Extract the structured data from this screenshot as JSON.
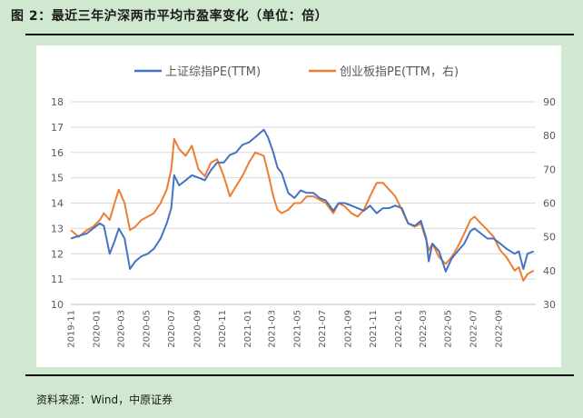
{
  "figure": {
    "title": "图 2：最近三年沪深两市平均市盈率变化（单位：倍）",
    "source": "资料来源：Wind，中原证券"
  },
  "colors": {
    "background": "#cfe8cf",
    "panel": "#ffffff",
    "series_blue": "#4472c4",
    "series_orange": "#ed7d31",
    "grid": "#d9d9d9",
    "axis_text": "#595959"
  },
  "chart_data": {
    "type": "line",
    "legend_position": "top",
    "grid": true,
    "x_ticks": [
      "2019-11",
      "2020-01",
      "2020-03",
      "2020-05",
      "2020-07",
      "2020-09",
      "2020-11",
      "2021-01",
      "2021-03",
      "2021-05",
      "2021-07",
      "2021-09",
      "2021-11",
      "2022-01",
      "2022-03",
      "2022-05",
      "2022-07",
      "2022-09"
    ],
    "x_range": [
      "2019-11-01",
      "2022-11-30"
    ],
    "y_left": {
      "ticks": [
        10,
        11,
        12,
        13,
        14,
        15,
        16,
        17,
        18
      ],
      "ylim": [
        10,
        18
      ]
    },
    "y_right": {
      "ticks": [
        30,
        40,
        50,
        60,
        70,
        80,
        90
      ],
      "ylim": [
        30,
        90
      ]
    },
    "series": [
      {
        "name": "上证综指PE(TTM)",
        "axis": "left",
        "points": [
          [
            "2019-11-01",
            12.6
          ],
          [
            "2019-11-20",
            12.7
          ],
          [
            "2019-12-10",
            12.8
          ],
          [
            "2019-12-25",
            13.0
          ],
          [
            "2020-01-10",
            13.2
          ],
          [
            "2020-01-20",
            13.1
          ],
          [
            "2020-02-03",
            12.0
          ],
          [
            "2020-02-15",
            12.5
          ],
          [
            "2020-02-25",
            13.0
          ],
          [
            "2020-03-10",
            12.6
          ],
          [
            "2020-03-23",
            11.4
          ],
          [
            "2020-04-05",
            11.7
          ],
          [
            "2020-04-20",
            11.9
          ],
          [
            "2020-05-05",
            12.0
          ],
          [
            "2020-05-20",
            12.2
          ],
          [
            "2020-06-05",
            12.6
          ],
          [
            "2020-06-20",
            13.2
          ],
          [
            "2020-07-01",
            13.8
          ],
          [
            "2020-07-08",
            15.1
          ],
          [
            "2020-07-20",
            14.7
          ],
          [
            "2020-08-05",
            14.9
          ],
          [
            "2020-08-20",
            15.1
          ],
          [
            "2020-09-05",
            15.0
          ],
          [
            "2020-09-20",
            14.9
          ],
          [
            "2020-10-05",
            15.3
          ],
          [
            "2020-10-20",
            15.6
          ],
          [
            "2020-11-05",
            15.6
          ],
          [
            "2020-11-20",
            15.9
          ],
          [
            "2020-12-05",
            16.0
          ],
          [
            "2020-12-20",
            16.3
          ],
          [
            "2021-01-05",
            16.4
          ],
          [
            "2021-01-20",
            16.6
          ],
          [
            "2021-02-10",
            16.9
          ],
          [
            "2021-02-20",
            16.6
          ],
          [
            "2021-03-05",
            16.0
          ],
          [
            "2021-03-15",
            15.4
          ],
          [
            "2021-03-25",
            15.2
          ],
          [
            "2021-04-10",
            14.4
          ],
          [
            "2021-04-25",
            14.2
          ],
          [
            "2021-05-10",
            14.5
          ],
          [
            "2021-05-25",
            14.4
          ],
          [
            "2021-06-10",
            14.4
          ],
          [
            "2021-06-25",
            14.2
          ],
          [
            "2021-07-10",
            14.1
          ],
          [
            "2021-07-28",
            13.7
          ],
          [
            "2021-08-10",
            14.0
          ],
          [
            "2021-08-25",
            14.0
          ],
          [
            "2021-09-10",
            13.9
          ],
          [
            "2021-09-25",
            13.8
          ],
          [
            "2021-10-10",
            13.7
          ],
          [
            "2021-10-25",
            13.9
          ],
          [
            "2021-11-10",
            13.6
          ],
          [
            "2021-11-25",
            13.8
          ],
          [
            "2021-12-10",
            13.8
          ],
          [
            "2021-12-25",
            13.9
          ],
          [
            "2022-01-10",
            13.8
          ],
          [
            "2022-01-25",
            13.2
          ],
          [
            "2022-02-10",
            13.1
          ],
          [
            "2022-02-25",
            13.3
          ],
          [
            "2022-03-10",
            12.6
          ],
          [
            "2022-03-16",
            11.7
          ],
          [
            "2022-03-25",
            12.4
          ],
          [
            "2022-04-10",
            12.1
          ],
          [
            "2022-04-26",
            11.3
          ],
          [
            "2022-05-10",
            11.8
          ],
          [
            "2022-05-25",
            12.1
          ],
          [
            "2022-06-10",
            12.4
          ],
          [
            "2022-06-25",
            12.9
          ],
          [
            "2022-07-05",
            13.0
          ],
          [
            "2022-07-20",
            12.8
          ],
          [
            "2022-08-05",
            12.6
          ],
          [
            "2022-08-20",
            12.6
          ],
          [
            "2022-09-05",
            12.4
          ],
          [
            "2022-09-20",
            12.2
          ],
          [
            "2022-10-10",
            12.0
          ],
          [
            "2022-10-20",
            12.1
          ],
          [
            "2022-10-31",
            11.4
          ],
          [
            "2022-11-10",
            12.0
          ],
          [
            "2022-11-25",
            12.1
          ]
        ]
      },
      {
        "name": "创业板指PE(TTM，右)",
        "axis": "right",
        "points": [
          [
            "2019-11-01",
            52
          ],
          [
            "2019-11-20",
            50
          ],
          [
            "2019-12-10",
            52
          ],
          [
            "2019-12-25",
            53
          ],
          [
            "2020-01-10",
            55
          ],
          [
            "2020-01-20",
            57
          ],
          [
            "2020-02-03",
            55
          ],
          [
            "2020-02-15",
            60
          ],
          [
            "2020-02-25",
            64
          ],
          [
            "2020-03-10",
            60
          ],
          [
            "2020-03-23",
            52
          ],
          [
            "2020-04-05",
            53
          ],
          [
            "2020-04-20",
            55
          ],
          [
            "2020-05-05",
            56
          ],
          [
            "2020-05-20",
            57
          ],
          [
            "2020-06-05",
            60
          ],
          [
            "2020-06-20",
            64
          ],
          [
            "2020-07-01",
            70
          ],
          [
            "2020-07-08",
            79
          ],
          [
            "2020-07-20",
            76
          ],
          [
            "2020-08-05",
            74
          ],
          [
            "2020-08-20",
            77
          ],
          [
            "2020-09-05",
            70
          ],
          [
            "2020-09-20",
            68
          ],
          [
            "2020-10-05",
            72
          ],
          [
            "2020-10-20",
            73
          ],
          [
            "2020-11-05",
            68
          ],
          [
            "2020-11-20",
            62
          ],
          [
            "2020-12-05",
            65
          ],
          [
            "2020-12-20",
            68
          ],
          [
            "2021-01-05",
            72
          ],
          [
            "2021-01-20",
            75
          ],
          [
            "2021-02-10",
            74
          ],
          [
            "2021-02-20",
            69
          ],
          [
            "2021-03-05",
            62
          ],
          [
            "2021-03-15",
            58
          ],
          [
            "2021-03-25",
            57
          ],
          [
            "2021-04-10",
            58
          ],
          [
            "2021-04-25",
            60
          ],
          [
            "2021-05-10",
            60
          ],
          [
            "2021-05-25",
            62
          ],
          [
            "2021-06-10",
            62
          ],
          [
            "2021-06-25",
            61
          ],
          [
            "2021-07-10",
            60
          ],
          [
            "2021-07-28",
            57
          ],
          [
            "2021-08-10",
            60
          ],
          [
            "2021-08-25",
            59
          ],
          [
            "2021-09-10",
            57
          ],
          [
            "2021-09-25",
            56
          ],
          [
            "2021-10-10",
            58
          ],
          [
            "2021-10-25",
            62
          ],
          [
            "2021-11-10",
            66
          ],
          [
            "2021-11-25",
            66
          ],
          [
            "2021-12-10",
            64
          ],
          [
            "2021-12-25",
            62
          ],
          [
            "2022-01-10",
            58
          ],
          [
            "2022-01-25",
            54
          ],
          [
            "2022-02-10",
            53
          ],
          [
            "2022-02-25",
            54
          ],
          [
            "2022-03-10",
            49
          ],
          [
            "2022-03-16",
            46
          ],
          [
            "2022-03-25",
            48
          ],
          [
            "2022-04-10",
            44
          ],
          [
            "2022-04-26",
            42
          ],
          [
            "2022-05-10",
            44
          ],
          [
            "2022-05-25",
            47
          ],
          [
            "2022-06-10",
            51
          ],
          [
            "2022-06-25",
            55
          ],
          [
            "2022-07-05",
            56
          ],
          [
            "2022-07-20",
            54
          ],
          [
            "2022-08-05",
            52
          ],
          [
            "2022-08-20",
            50
          ],
          [
            "2022-09-05",
            46
          ],
          [
            "2022-09-20",
            44
          ],
          [
            "2022-10-10",
            40
          ],
          [
            "2022-10-20",
            41
          ],
          [
            "2022-10-31",
            37
          ],
          [
            "2022-11-10",
            39
          ],
          [
            "2022-11-25",
            40
          ]
        ]
      }
    ]
  }
}
